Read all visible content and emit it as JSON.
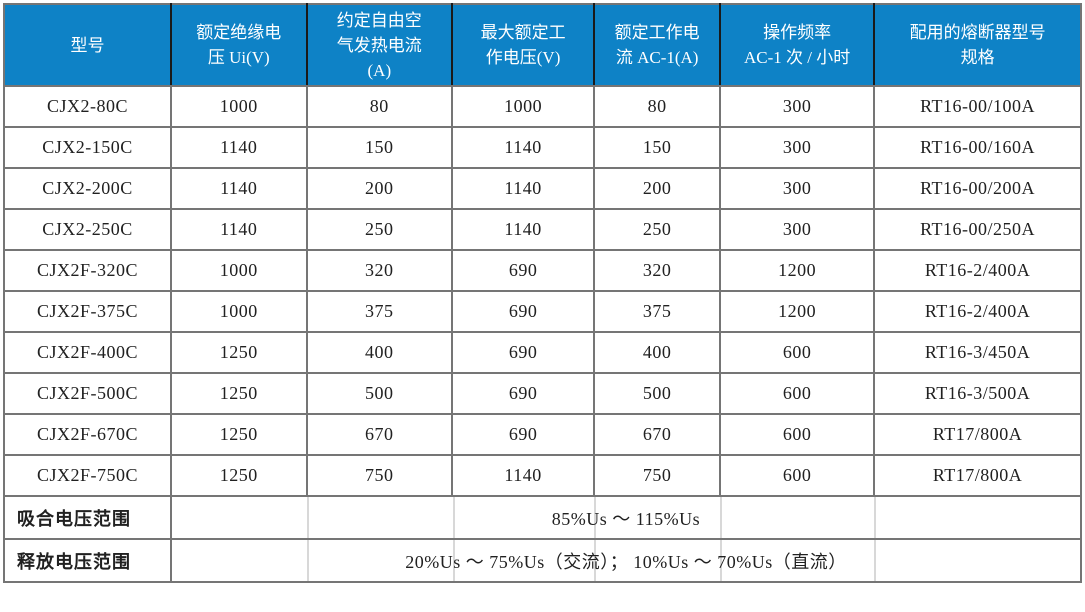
{
  "table": {
    "columns": [
      {
        "label": "型号"
      },
      {
        "label": "额定绝缘电\n压 Ui(V)"
      },
      {
        "label": "约定自由空\n气发热电流\n(A)"
      },
      {
        "label": "最大额定工\n作电压(V)"
      },
      {
        "label": "额定工作电\n流 AC-1(A)"
      },
      {
        "label": "操作频率\nAC-1 次 / 小时"
      },
      {
        "label": "配用的熔断器型号\n规格"
      }
    ],
    "rows": [
      [
        "CJX2-80C",
        "1000",
        "80",
        "1000",
        "80",
        "300",
        "RT16-00/100A"
      ],
      [
        "CJX2-150C",
        "1140",
        "150",
        "1140",
        "150",
        "300",
        "RT16-00/160A"
      ],
      [
        "CJX2-200C",
        "1140",
        "200",
        "1140",
        "200",
        "300",
        "RT16-00/200A"
      ],
      [
        "CJX2-250C",
        "1140",
        "250",
        "1140",
        "250",
        "300",
        "RT16-00/250A"
      ],
      [
        "CJX2F-320C",
        "1000",
        "320",
        "690",
        "320",
        "1200",
        "RT16-2/400A"
      ],
      [
        "CJX2F-375C",
        "1000",
        "375",
        "690",
        "375",
        "1200",
        "RT16-2/400A"
      ],
      [
        "CJX2F-400C",
        "1250",
        "400",
        "690",
        "400",
        "600",
        "RT16-3/450A"
      ],
      [
        "CJX2F-500C",
        "1250",
        "500",
        "690",
        "500",
        "600",
        "RT16-3/500A"
      ],
      [
        "CJX2F-670C",
        "1250",
        "670",
        "690",
        "670",
        "600",
        "RT17/800A"
      ],
      [
        "CJX2F-750C",
        "1250",
        "750",
        "1140",
        "750",
        "600",
        "RT17/800A"
      ]
    ],
    "footer_rows": [
      {
        "label": "吸合电压范围",
        "value": "85%Us ～ 115%Us"
      },
      {
        "label": "释放电压范围",
        "value": "20%Us ～ 75%Us（交流）； 10%Us ～ 70%Us（直流）"
      }
    ],
    "colors": {
      "header_bg": "#0E82C6",
      "header_text": "#FFFFFF",
      "grid_line": "#757575",
      "body_text": "#212121"
    }
  }
}
